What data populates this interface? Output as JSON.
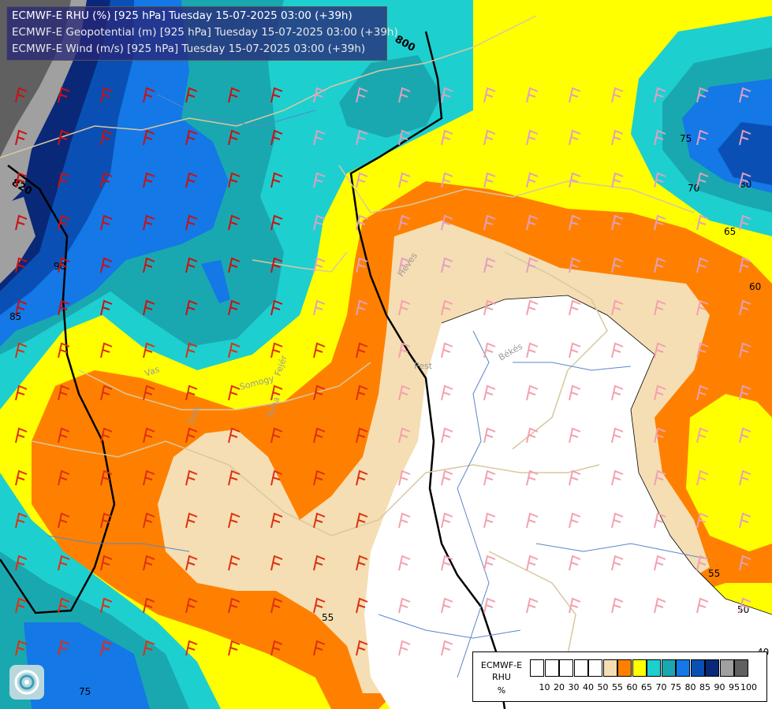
{
  "titles": [
    "ECMWF-E RHU (%) [925 hPa] Tuesday 15-07-2025 03:00 (+39h)",
    "ECMWF-E Geopotential (m) [925 hPa] Tuesday 15-07-2025 03:00 (+39h)",
    "ECMWF-E Wind (m/s) [925 hPa] Tuesday 15-07-2025 03:00 (+39h)"
  ],
  "legend": {
    "label_line1": "ECMWF-E",
    "label_line2": "RHU",
    "label_line3": "%",
    "ticks": [
      "10",
      "20",
      "30",
      "40",
      "50",
      "55",
      "60",
      "65",
      "70",
      "75",
      "80",
      "85",
      "90",
      "95",
      "100"
    ],
    "colors": [
      "#ffffff",
      "#ffffff",
      "#ffffff",
      "#ffffff",
      "#ffffff",
      "#f5deb3",
      "#ff8000",
      "#ffff00",
      "#1ecfd0",
      "#1aa8b0",
      "#1478e6",
      "#0a50b4",
      "#0a2878",
      "#a0a0a0",
      "#606060"
    ]
  },
  "colors": {
    "rhu_50": "#ffffff",
    "rhu_55": "#f5deb3",
    "rhu_60": "#ff8000",
    "rhu_65": "#ffff00",
    "rhu_70": "#1ecfd0",
    "rhu_75": "#1aa8b0",
    "rhu_80": "#1478e6",
    "rhu_85": "#0a50b4",
    "rhu_90": "#0a2878",
    "rhu_95": "#a0a0a0",
    "rhu_100": "#606060"
  },
  "geopotential_labels": [
    "800",
    "820"
  ],
  "contour_labels": [
    "75",
    "70",
    "80",
    "65",
    "60",
    "55",
    "50",
    "40",
    "75",
    "90",
    "85",
    "55"
  ],
  "place_labels": [
    "Heves",
    "Pest",
    "Békés",
    "Somogy",
    "Fejér",
    "Tolna",
    "Vas",
    "Zala"
  ],
  "logo_icon": "ecmwf-logo-icon"
}
